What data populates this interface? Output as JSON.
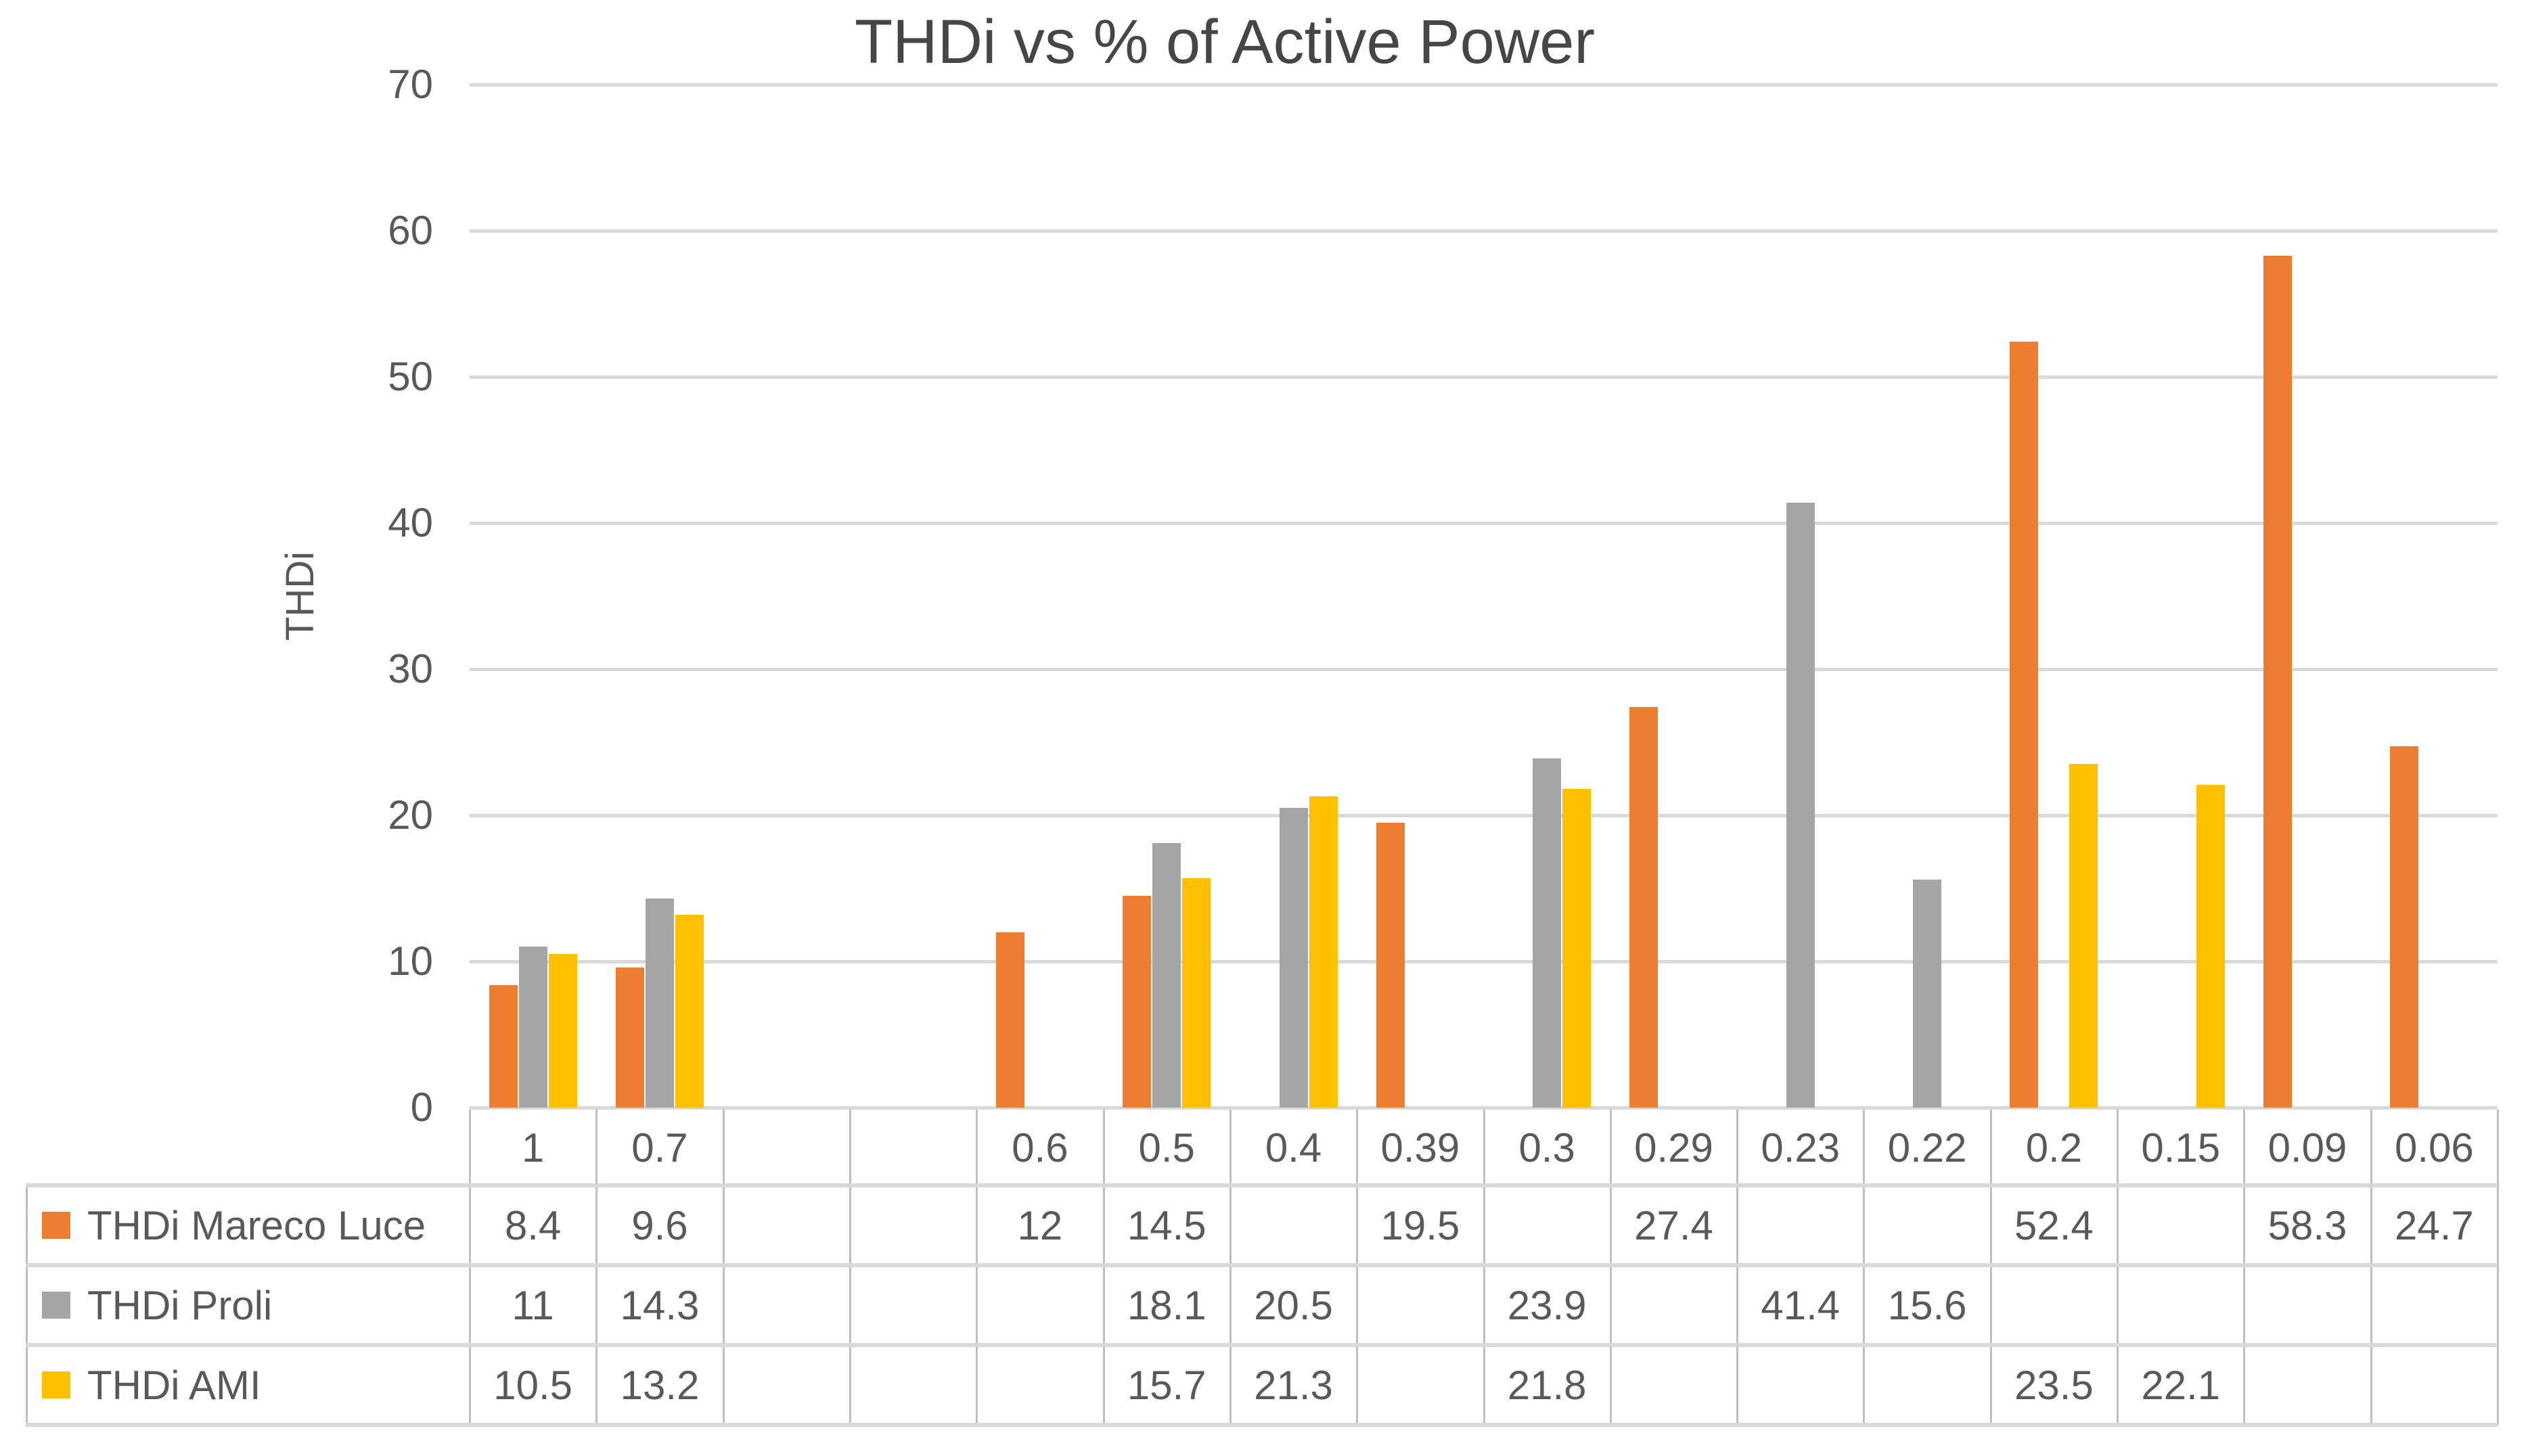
{
  "chart_data": {
    "type": "bar",
    "title": "THDi vs % of Active Power",
    "xlabel": "",
    "ylabel": "THDi",
    "ylim": [
      0,
      70
    ],
    "ytick_interval": 10,
    "grid": "horizontal",
    "legend_position": "data-table-row-keys",
    "categories": [
      "1",
      "0.7",
      "",
      "",
      "0.6",
      "0.5",
      "0.4",
      "0.39",
      "0.3",
      "0.29",
      "0.23",
      "0.22",
      "0.2",
      "0.15",
      "0.09",
      "0.06"
    ],
    "series": [
      {
        "name": "THDi Mareco Luce",
        "color": "#ED7D31",
        "values": [
          8.4,
          9.6,
          null,
          null,
          12,
          14.5,
          null,
          19.5,
          null,
          27.4,
          null,
          null,
          52.4,
          null,
          58.3,
          24.7
        ]
      },
      {
        "name": "THDi Proli",
        "color": "#A5A5A5",
        "values": [
          11,
          14.3,
          null,
          null,
          null,
          18.1,
          20.5,
          null,
          23.9,
          null,
          41.4,
          15.6,
          null,
          null,
          null,
          null
        ]
      },
      {
        "name": "THDi AMI",
        "color": "#FFC000",
        "values": [
          10.5,
          13.2,
          null,
          null,
          null,
          15.7,
          21.3,
          null,
          21.8,
          null,
          null,
          null,
          23.5,
          22.1,
          null,
          null
        ]
      }
    ]
  },
  "style_colors": {
    "series_orange": "#ED7D31",
    "series_gray": "#A5A5A5",
    "series_yellow": "#FFC000",
    "gridline": "#D9D9D9",
    "table_vline": "#BFBFBF",
    "table_hline": "#D9D9D9",
    "text": "#595959",
    "title_text": "#464646"
  }
}
